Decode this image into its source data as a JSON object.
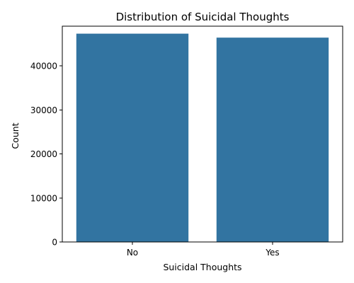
{
  "chart_data": {
    "type": "bar",
    "title": "Distribution of Suicidal Thoughts",
    "xlabel": "Suicidal Thoughts",
    "ylabel": "Count",
    "categories": [
      "No",
      "Yes"
    ],
    "values": [
      47300,
      46400
    ],
    "ylim": [
      0,
      49000
    ],
    "yticks": [
      0,
      10000,
      20000,
      30000,
      40000
    ],
    "ytick_labels": [
      "0",
      "10000",
      "20000",
      "30000",
      "40000"
    ],
    "bar_color": "#3274a1",
    "grid": false,
    "legend": "none"
  }
}
